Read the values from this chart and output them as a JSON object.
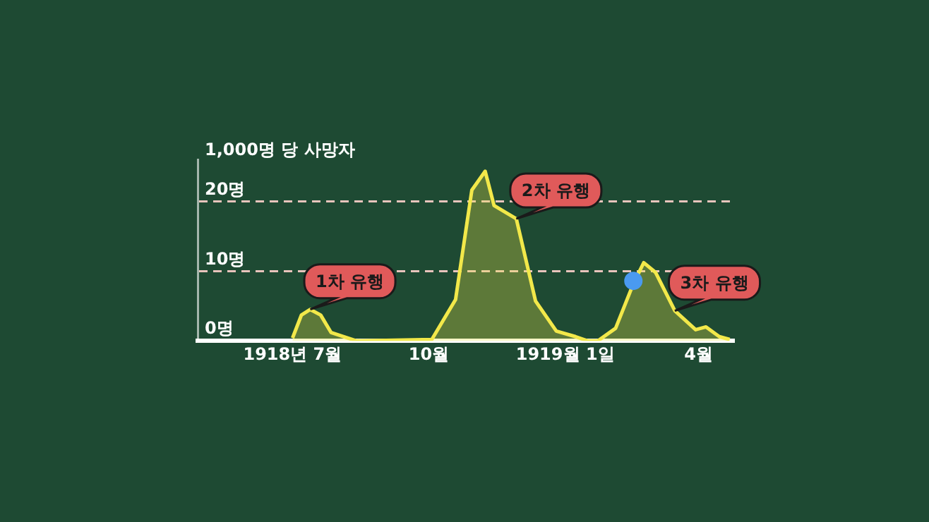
{
  "chart_data": {
    "type": "area",
    "ylabel": "1,000명 당 사망자",
    "xlim": [
      "1918-04-28",
      "1919-04-25"
    ],
    "xticks": [
      {
        "value": "1918-07-01",
        "label": "1918년 7월"
      },
      {
        "value": "1918-10-01",
        "label": "10월"
      },
      {
        "value": "1919-01-01",
        "label": "1919월 1일"
      },
      {
        "value": "1919-04-01",
        "label": "4월"
      }
    ],
    "ylim": [
      0,
      26
    ],
    "yticks": [
      {
        "value": 0,
        "label": "0명"
      },
      {
        "value": 10,
        "label": "10명"
      },
      {
        "value": 20,
        "label": "20명"
      }
    ],
    "grid": "y",
    "line_style": "dashed",
    "legend": false,
    "series": [
      {
        "color": "#f2e84a",
        "x": [
          "1918-07-01",
          "1918-07-07",
          "1918-07-13",
          "1918-07-20",
          "1918-07-27",
          "1918-08-13",
          "1918-10-03",
          "1918-10-19",
          "1918-10-30",
          "1918-11-08",
          "1918-11-14",
          "1918-11-29",
          "1918-12-12",
          "1918-12-26",
          "1919-01-08",
          "1919-01-16",
          "1919-01-23",
          "1919-02-04",
          "1919-02-16",
          "1919-02-23",
          "1919-03-03",
          "1919-03-16",
          "1919-03-30",
          "1919-04-06",
          "1919-04-15",
          "1919-04-22"
        ],
        "values": [
          0.4,
          3.7,
          4.5,
          3.7,
          1.2,
          0,
          0.2,
          5.9,
          21.6,
          24.3,
          19.4,
          17.5,
          5.7,
          1.4,
          0.6,
          0,
          0,
          1.8,
          8.2,
          11.2,
          9.8,
          4.3,
          1.6,
          2,
          0.6,
          0.2
        ]
      },
      {
        "type": "scatter",
        "color": "#4a9af0",
        "x": [
          "1919-02-16"
        ],
        "values": [
          8.6
        ]
      }
    ],
    "annotations": [
      {
        "text": "1차 유행",
        "x": "1918-07-13",
        "y": 4.5
      },
      {
        "text": "2차 유행",
        "x": "1918-11-29",
        "y": 17.5
      },
      {
        "text": "3차 유행",
        "x": "1919-03-16",
        "y": 4.3
      }
    ]
  }
}
